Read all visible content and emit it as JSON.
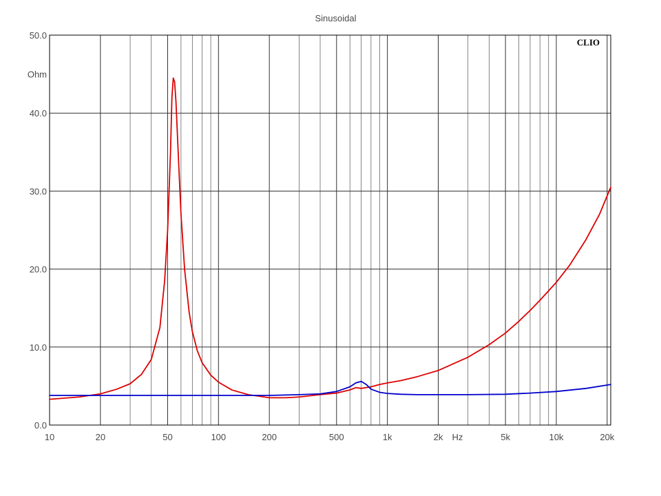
{
  "chart_data": {
    "type": "line",
    "title": "Sinusoidal",
    "brand": "CLIO",
    "ylabel": "Ohm",
    "xunit": "Hz",
    "x_scale": "log",
    "xlim": [
      10,
      21000
    ],
    "ylim": [
      0,
      50
    ],
    "grid": true,
    "x_ticks": [
      {
        "value": 10,
        "label": "10"
      },
      {
        "value": 20,
        "label": "20"
      },
      {
        "value": 50,
        "label": "50"
      },
      {
        "value": 100,
        "label": "100"
      },
      {
        "value": 200,
        "label": "200"
      },
      {
        "value": 500,
        "label": "500"
      },
      {
        "value": 1000,
        "label": "1k"
      },
      {
        "value": 2000,
        "label": "2k"
      },
      {
        "value": 5000,
        "label": "5k"
      },
      {
        "value": 10000,
        "label": "10k"
      },
      {
        "value": 20000,
        "label": "20k"
      }
    ],
    "y_ticks": [
      {
        "value": 0,
        "label": "0.0"
      },
      {
        "value": 10,
        "label": "10.0"
      },
      {
        "value": 20,
        "label": "20.0"
      },
      {
        "value": 30,
        "label": "30.0"
      },
      {
        "value": 40,
        "label": "40.0"
      },
      {
        "value": 50,
        "label": "50.0"
      }
    ],
    "series": [
      {
        "color": "#dd0000",
        "points": [
          [
            10,
            3.3
          ],
          [
            15,
            3.6
          ],
          [
            20,
            4.0
          ],
          [
            25,
            4.6
          ],
          [
            30,
            5.3
          ],
          [
            35,
            6.5
          ],
          [
            40,
            8.4
          ],
          [
            45,
            12.5
          ],
          [
            48,
            18.5
          ],
          [
            50,
            25.0
          ],
          [
            52,
            35.0
          ],
          [
            53,
            42.0
          ],
          [
            54,
            44.5
          ],
          [
            55,
            44.0
          ],
          [
            56,
            41.5
          ],
          [
            58,
            34.0
          ],
          [
            60,
            27.0
          ],
          [
            63,
            20.0
          ],
          [
            67,
            14.5
          ],
          [
            70,
            12.0
          ],
          [
            75,
            9.5
          ],
          [
            80,
            8.0
          ],
          [
            90,
            6.4
          ],
          [
            100,
            5.5
          ],
          [
            120,
            4.5
          ],
          [
            150,
            3.9
          ],
          [
            200,
            3.5
          ],
          [
            250,
            3.5
          ],
          [
            300,
            3.6
          ],
          [
            400,
            3.9
          ],
          [
            500,
            4.1
          ],
          [
            600,
            4.5
          ],
          [
            650,
            4.8
          ],
          [
            700,
            4.7
          ],
          [
            750,
            4.8
          ],
          [
            800,
            4.9
          ],
          [
            900,
            5.2
          ],
          [
            1000,
            5.4
          ],
          [
            1200,
            5.7
          ],
          [
            1500,
            6.2
          ],
          [
            2000,
            7.0
          ],
          [
            3000,
            8.7
          ],
          [
            4000,
            10.3
          ],
          [
            5000,
            11.8
          ],
          [
            6000,
            13.3
          ],
          [
            7000,
            14.7
          ],
          [
            8000,
            16.0
          ],
          [
            10000,
            18.3
          ],
          [
            12000,
            20.5
          ],
          [
            15000,
            23.8
          ],
          [
            18000,
            27.0
          ],
          [
            21000,
            30.5
          ]
        ]
      },
      {
        "color": "#0000cc",
        "points": [
          [
            10,
            3.8
          ],
          [
            50,
            3.8
          ],
          [
            100,
            3.8
          ],
          [
            200,
            3.8
          ],
          [
            300,
            3.9
          ],
          [
            400,
            4.0
          ],
          [
            500,
            4.3
          ],
          [
            600,
            4.9
          ],
          [
            650,
            5.4
          ],
          [
            700,
            5.6
          ],
          [
            750,
            5.2
          ],
          [
            800,
            4.6
          ],
          [
            900,
            4.2
          ],
          [
            1000,
            4.05
          ],
          [
            1200,
            3.95
          ],
          [
            1500,
            3.9
          ],
          [
            2000,
            3.9
          ],
          [
            3000,
            3.9
          ],
          [
            5000,
            3.95
          ],
          [
            7000,
            4.1
          ],
          [
            10000,
            4.3
          ],
          [
            15000,
            4.7
          ],
          [
            21000,
            5.2
          ]
        ]
      }
    ]
  }
}
